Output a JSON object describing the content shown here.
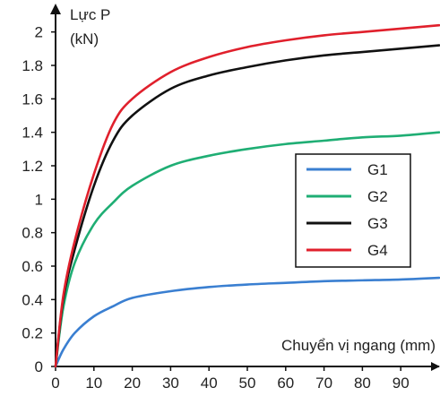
{
  "chart_data": {
    "type": "line",
    "ylabel_lines": [
      "Lực P",
      "(kN)"
    ],
    "xlabel": "Chuyển vị ngang (mm)",
    "xlim": [
      0,
      100
    ],
    "ylim": [
      0,
      2.1
    ],
    "xticks": [
      0,
      10,
      20,
      30,
      40,
      50,
      60,
      70,
      80,
      90
    ],
    "xtick_labels": [
      "0",
      "10",
      "20",
      "30",
      "40",
      "50",
      "60",
      "70",
      "80",
      "90"
    ],
    "yticks": [
      0,
      0.2,
      0.4,
      0.6,
      0.8,
      1,
      1.2,
      1.4,
      1.6,
      1.8,
      2
    ],
    "ytick_labels": [
      "0",
      "0.2",
      "0.4",
      "0.6",
      "0.8",
      "1",
      "1.2",
      "1.4",
      "1.6",
      "1.8",
      "2"
    ],
    "legend_position": "right",
    "x": [
      0,
      2,
      5,
      10,
      15,
      20,
      30,
      40,
      50,
      60,
      70,
      80,
      90,
      100
    ],
    "series": [
      {
        "name": "G1",
        "color": "#3a7fd1",
        "values": [
          0,
          0.1,
          0.2,
          0.3,
          0.36,
          0.41,
          0.45,
          0.475,
          0.49,
          0.5,
          0.51,
          0.515,
          0.52,
          0.53
        ]
      },
      {
        "name": "G2",
        "color": "#1fae74",
        "values": [
          0,
          0.35,
          0.62,
          0.85,
          0.98,
          1.08,
          1.2,
          1.26,
          1.3,
          1.33,
          1.35,
          1.37,
          1.38,
          1.4
        ]
      },
      {
        "name": "G3",
        "color": "#111111",
        "values": [
          0,
          0.4,
          0.7,
          1.08,
          1.35,
          1.5,
          1.66,
          1.74,
          1.79,
          1.83,
          1.86,
          1.88,
          1.9,
          1.92
        ]
      },
      {
        "name": "G4",
        "color": "#e0202c",
        "values": [
          0,
          0.42,
          0.75,
          1.15,
          1.45,
          1.6,
          1.76,
          1.85,
          1.91,
          1.95,
          1.98,
          2.0,
          2.02,
          2.04
        ]
      }
    ]
  }
}
